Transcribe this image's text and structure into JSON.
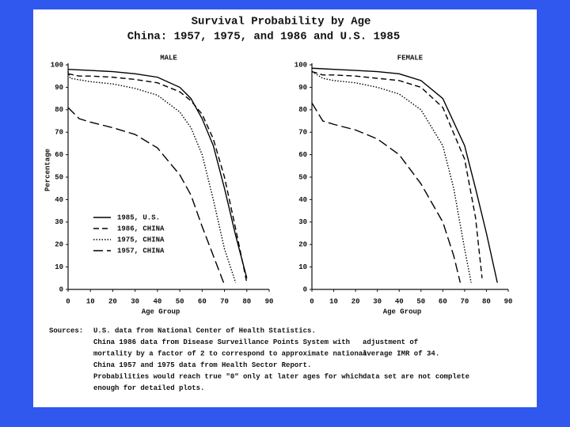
{
  "title": "Survival Probability by Age",
  "subtitle": "China: 1957, 1975, and 1986 and U.S. 1985",
  "sources": {
    "label": "Sources:",
    "lines": [
      [
        "U.S. data from National Center of Health Statistics."
      ],
      [
        "China 1986 data from Disease Surveillance Points System with",
        "adjustment of"
      ],
      [
        "mortality by a factor of 2 to correspond to approximate national",
        "average IMR of 34."
      ],
      [
        "China 1957 and 1975 data from Health Sector Report."
      ],
      [
        "Probabilities would reach true \"0\" only at later ages for which",
        "data set are not complete"
      ],
      [
        "enough for detailed plots."
      ]
    ]
  },
  "chart_data": [
    {
      "type": "line",
      "title": "MALE",
      "x_label": "Age Group",
      "y_label": "Percentage",
      "xlim": [
        0,
        90
      ],
      "xticks": [
        0,
        10,
        20,
        30,
        40,
        50,
        60,
        70,
        80,
        90
      ],
      "ylim": [
        0,
        100
      ],
      "yticks": [
        0,
        10,
        20,
        30,
        40,
        50,
        60,
        70,
        80,
        90,
        100
      ],
      "legend": "lower-left",
      "series": [
        {
          "name": "1985, U.S.",
          "color": "#000000",
          "style": "solid",
          "x": [
            0,
            10,
            20,
            30,
            40,
            50,
            55,
            60,
            65,
            70,
            75,
            80
          ],
          "values": [
            98,
            97.5,
            97,
            96,
            94.5,
            90,
            85,
            76,
            64,
            45,
            24,
            5
          ]
        },
        {
          "name": "1986, CHINA",
          "color": "#000000",
          "style": "dashed",
          "x": [
            0,
            5,
            10,
            20,
            30,
            40,
            50,
            55,
            60,
            65,
            70,
            75,
            80
          ],
          "values": [
            96,
            95,
            95,
            94.5,
            93.5,
            92,
            88,
            84,
            78,
            67,
            50,
            27,
            3
          ]
        },
        {
          "name": "1975, CHINA",
          "color": "#000000",
          "style": "dotted",
          "x": [
            0,
            1,
            10,
            20,
            30,
            40,
            50,
            55,
            60,
            65,
            70,
            75
          ],
          "values": [
            97,
            94,
            92.5,
            91.5,
            89.5,
            86.5,
            79,
            72,
            60,
            40,
            18,
            3
          ]
        },
        {
          "name": "1957, CHINA",
          "color": "#000000",
          "style": "longdash",
          "x": [
            0,
            5,
            10,
            20,
            30,
            40,
            50,
            55,
            60,
            65,
            70
          ],
          "values": [
            81,
            76,
            74.5,
            72,
            69,
            63,
            51,
            42,
            28,
            15,
            2
          ]
        }
      ]
    },
    {
      "type": "line",
      "title": "FEMALE",
      "x_label": "Age Group",
      "xlim": [
        0,
        90
      ],
      "xticks": [
        0,
        10,
        20,
        30,
        40,
        50,
        60,
        70,
        80,
        90
      ],
      "ylim": [
        0,
        100
      ],
      "yticks": [
        0,
        10,
        20,
        30,
        40,
        50,
        60,
        70,
        80,
        90,
        100
      ],
      "series": [
        {
          "color": "#000000",
          "style": "solid",
          "x": [
            0,
            10,
            20,
            30,
            40,
            50,
            60,
            70,
            75,
            80,
            85
          ],
          "values": [
            98.5,
            98,
            97.5,
            97,
            96,
            93,
            85,
            64,
            45,
            25,
            3
          ]
        },
        {
          "color": "#000000",
          "style": "dashed",
          "x": [
            0,
            5,
            10,
            20,
            30,
            40,
            50,
            60,
            70,
            75,
            78
          ],
          "values": [
            97,
            95.5,
            95.5,
            95,
            94,
            93,
            90,
            81,
            58,
            32,
            5
          ]
        },
        {
          "color": "#000000",
          "style": "dotted",
          "x": [
            0,
            5,
            10,
            20,
            30,
            40,
            50,
            60,
            65,
            70,
            73
          ],
          "values": [
            97,
            94,
            93,
            92,
            90,
            87,
            80,
            64,
            45,
            18,
            3
          ]
        },
        {
          "color": "#000000",
          "style": "longdash",
          "x": [
            0,
            5,
            10,
            20,
            30,
            40,
            50,
            60,
            65,
            68
          ],
          "values": [
            83,
            75,
            73.5,
            71,
            67,
            60,
            47,
            30,
            15,
            3
          ]
        }
      ]
    }
  ]
}
